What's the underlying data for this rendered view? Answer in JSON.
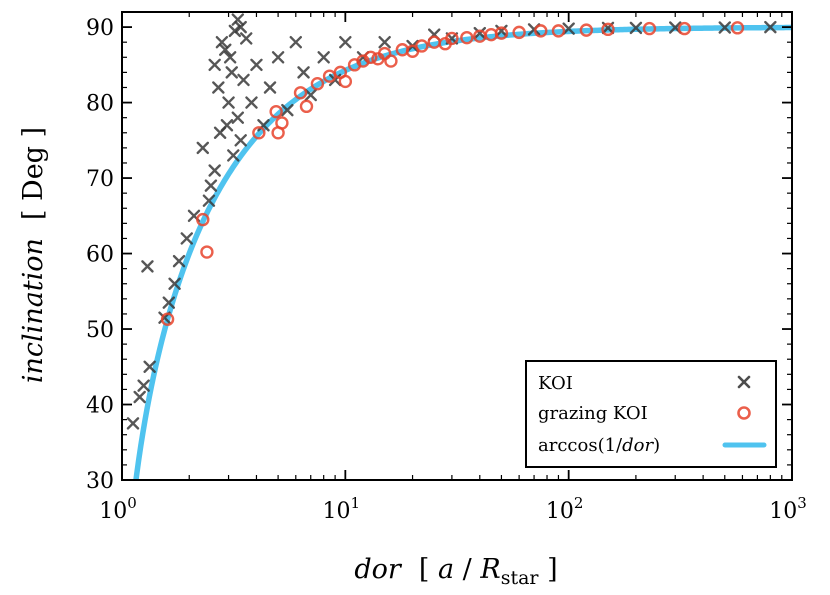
{
  "chart_data": {
    "type": "scatter",
    "xscale": "log",
    "xlim": [
      1,
      1000
    ],
    "ylim": [
      30,
      92
    ],
    "x_ticks": [
      {
        "value": 1,
        "base": "10",
        "exp": "0"
      },
      {
        "value": 10,
        "base": "10",
        "exp": "1"
      },
      {
        "value": 100,
        "base": "10",
        "exp": "2"
      },
      {
        "value": 1000,
        "base": "10",
        "exp": "3"
      }
    ],
    "y_ticks": [
      {
        "value": 30,
        "label": "30"
      },
      {
        "value": 40,
        "label": "40"
      },
      {
        "value": 50,
        "label": "50"
      },
      {
        "value": 60,
        "label": "60"
      },
      {
        "value": 70,
        "label": "70"
      },
      {
        "value": 80,
        "label": "80"
      },
      {
        "value": 90,
        "label": "90"
      }
    ],
    "xlabel": {
      "var": "dor",
      "open": "[ ",
      "a": "a",
      "slash": " / ",
      "R": "R",
      "sub": "star",
      "close": " ]"
    },
    "ylabel": {
      "var": "inclination",
      "unit": "[ Deg ]"
    },
    "legend": {
      "placement": "lower-right",
      "entries": [
        {
          "label": "KOI",
          "marker": "x"
        },
        {
          "label": "grazing KOI",
          "marker": "circle"
        },
        {
          "prefix": "arccos(1/",
          "italic": "dor",
          "suffix": ")",
          "marker": "line"
        }
      ]
    },
    "colors": {
      "koi": "#3a3a3a",
      "grazing": "#e8432b",
      "curve": "#4fc3ef"
    },
    "series": [
      {
        "name": "KOI",
        "marker": "x",
        "points": [
          [
            1.12,
            37.5
          ],
          [
            1.2,
            41
          ],
          [
            1.25,
            42.5
          ],
          [
            1.3,
            58.3
          ],
          [
            1.33,
            45
          ],
          [
            1.55,
            51.5
          ],
          [
            1.62,
            53.5
          ],
          [
            1.72,
            56
          ],
          [
            1.8,
            59
          ],
          [
            1.95,
            62
          ],
          [
            2.1,
            65
          ],
          [
            2.3,
            74
          ],
          [
            2.45,
            67
          ],
          [
            2.5,
            69
          ],
          [
            2.6,
            71
          ],
          [
            2.75,
            76
          ],
          [
            2.9,
            87
          ],
          [
            3.0,
            80
          ],
          [
            3.1,
            84
          ],
          [
            3.2,
            89.5
          ],
          [
            3.3,
            78
          ],
          [
            2.6,
            85
          ],
          [
            2.7,
            82
          ],
          [
            2.8,
            88
          ],
          [
            2.95,
            77
          ],
          [
            3.05,
            86
          ],
          [
            3.15,
            73
          ],
          [
            3.3,
            91
          ],
          [
            3.4,
            90
          ],
          [
            3.4,
            75
          ],
          [
            3.5,
            83
          ],
          [
            3.6,
            88.5
          ],
          [
            3.8,
            80
          ],
          [
            4.0,
            85
          ],
          [
            4.3,
            77
          ],
          [
            4.6,
            82
          ],
          [
            5.0,
            86
          ],
          [
            5.5,
            79
          ],
          [
            6.0,
            88
          ],
          [
            6.5,
            84
          ],
          [
            7.0,
            81
          ],
          [
            8.0,
            86
          ],
          [
            9.0,
            83
          ],
          [
            10.0,
            88
          ],
          [
            12.0,
            86
          ],
          [
            15.0,
            88
          ],
          [
            20.0,
            87.5
          ],
          [
            25.0,
            89
          ],
          [
            30.0,
            88.5
          ],
          [
            40.0,
            89.2
          ],
          [
            50.0,
            89.5
          ],
          [
            70.0,
            89.7
          ],
          [
            100.0,
            89.8
          ],
          [
            150.0,
            89.9
          ],
          [
            200.0,
            89.9
          ],
          [
            300.0,
            89.95
          ],
          [
            500.0,
            89.95
          ],
          [
            800.0,
            90
          ]
        ]
      },
      {
        "name": "grazing KOI",
        "marker": "circle",
        "points": [
          [
            1.6,
            51.3
          ],
          [
            2.3,
            64.5
          ],
          [
            2.4,
            60.2
          ],
          [
            4.1,
            76
          ],
          [
            4.9,
            78.8
          ],
          [
            5.0,
            76
          ],
          [
            5.2,
            77.3
          ],
          [
            6.3,
            81.3
          ],
          [
            6.7,
            79.5
          ],
          [
            7.5,
            82.5
          ],
          [
            8.5,
            83.5
          ],
          [
            9.5,
            84
          ],
          [
            10.0,
            82.8
          ],
          [
            11.0,
            85
          ],
          [
            12.0,
            85.5
          ],
          [
            13.0,
            86
          ],
          [
            14.0,
            85.8
          ],
          [
            15.0,
            86.5
          ],
          [
            16.0,
            85.5
          ],
          [
            18.0,
            87
          ],
          [
            20.0,
            86.8
          ],
          [
            22.0,
            87.5
          ],
          [
            25.0,
            88
          ],
          [
            28.0,
            87.8
          ],
          [
            30.0,
            88.5
          ],
          [
            35.0,
            88.6
          ],
          [
            40.0,
            88.8
          ],
          [
            45.0,
            89
          ],
          [
            50.0,
            89.2
          ],
          [
            60.0,
            89.3
          ],
          [
            75.0,
            89.5
          ],
          [
            90.0,
            89.5
          ],
          [
            120.0,
            89.6
          ],
          [
            150.0,
            89.7
          ],
          [
            230.0,
            89.8
          ],
          [
            330.0,
            89.8
          ],
          [
            570.0,
            89.9
          ]
        ]
      },
      {
        "name": "arccos(1/dor)",
        "marker": "line",
        "function": "arccos(1/dor)"
      }
    ]
  }
}
